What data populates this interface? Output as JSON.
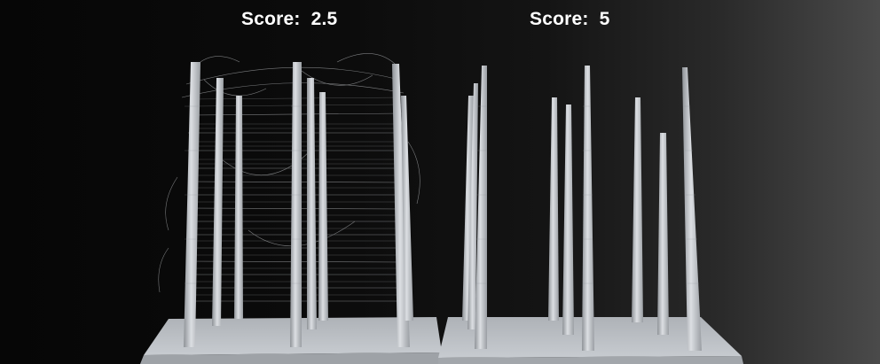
{
  "labels": {
    "left_score": "Score:  2.5",
    "right_score": "Score:  5"
  },
  "colors": {
    "background": "#0a0a0a",
    "pillar": "#c9cdd2",
    "base_plate": "#b9bdc2",
    "stringing": "#d8dbde"
  },
  "subjects": {
    "left_print": "3d-print-retraction-test-with-heavy-stringing",
    "right_print": "3d-print-retraction-test-clean"
  }
}
